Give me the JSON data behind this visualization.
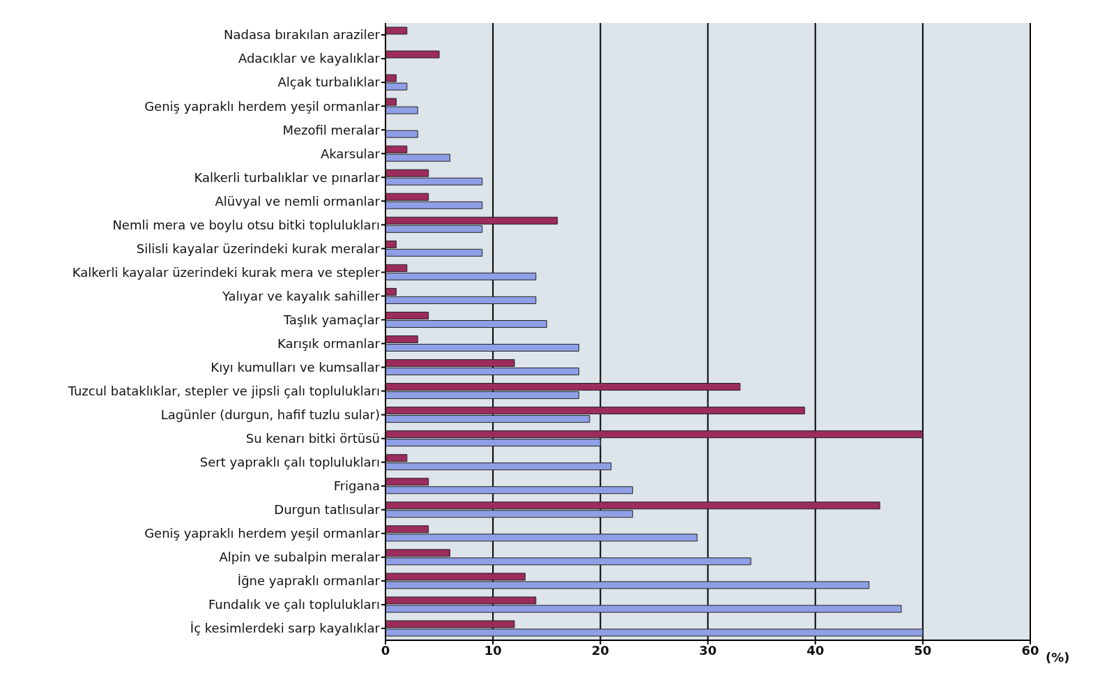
{
  "chart_data": {
    "type": "bar",
    "orientation": "horizontal",
    "xlabel": "(%)",
    "categories": [
      "Nadasa bırakılan araziler",
      "Adacıklar ve kayalıklar",
      "Alçak turbalıklar",
      "Geniş yapraklı herdem yeşil ormanlar",
      "Mezofil meralar",
      "Akarsular",
      "Kalkerli turbalıklar ve pınarlar",
      "Alüvyal ve nemli ormanlar",
      "Nemli mera ve boylu otsu bitki toplulukları",
      "Silisli kayalar üzerindeki kurak meralar",
      "Kalkerli kayalar üzerindeki kurak mera ve stepler",
      "Yalıyar ve kayalık sahiller",
      "Taşlık yamaçlar",
      "Karışık ormanlar",
      "Kıyı kumulları ve kumsallar",
      "Tuzcul bataklıklar, stepler ve jipsli çalı toplulukları",
      "Lagünler (durgun, hafif tuzlu sular)",
      "Su kenarı bitki örtüsü",
      "Sert yapraklı çalı toplulukları",
      "Frigana",
      "Durgun tatlısular",
      "Geniş yapraklı herdem yeşil ormanlar",
      "Alpin ve subalpin meralar",
      "İğne yapraklı ormanlar",
      "Fundalık ve çalı toplulukları",
      "İç kesimlerdeki sarp kayalıklar"
    ],
    "series": [
      {
        "color": "#9b2c5c",
        "values": [
          2,
          5,
          1,
          1,
          null,
          2,
          4,
          4,
          16,
          1,
          2,
          1,
          4,
          3,
          12,
          33,
          39,
          50,
          2,
          4,
          46,
          4,
          6,
          13,
          14,
          12
        ]
      },
      {
        "color": "#8f9fe6",
        "values": [
          null,
          null,
          2,
          3,
          3,
          6,
          9,
          9,
          9,
          9,
          14,
          14,
          15,
          18,
          18,
          18,
          19,
          20,
          21,
          23,
          23,
          29,
          34,
          45,
          48,
          50
        ]
      }
    ],
    "xlim": [
      0,
      60
    ],
    "xticks": [
      0,
      10,
      20,
      30,
      40,
      50,
      60
    ],
    "grid": "x"
  }
}
